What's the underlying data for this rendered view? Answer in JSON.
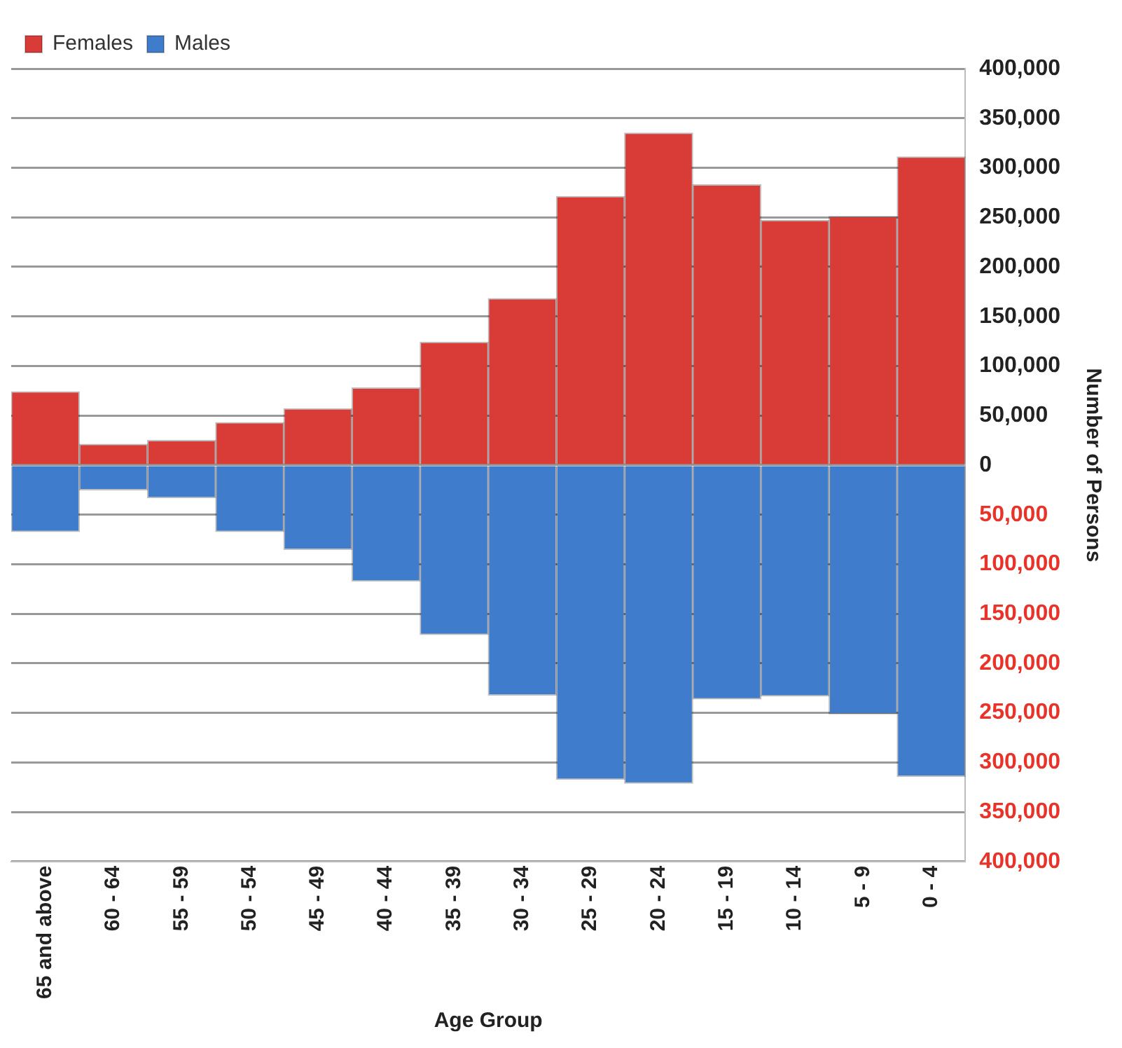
{
  "chart_data": {
    "type": "bar",
    "stacked": true,
    "xlabel": "Age Group",
    "ylabel": "Number of Persons",
    "categories": [
      "65 and above",
      "60 - 64",
      "55 - 59",
      "50 - 54",
      "45 - 49",
      "40 - 44",
      "35 - 39",
      "30 - 34",
      "25 - 29",
      "20 - 24",
      "15 - 19",
      "10 - 14",
      "5 - 9",
      "0 - 4"
    ],
    "series": [
      {
        "name": "Females",
        "color": "#d93b36",
        "values": [
          74000,
          21000,
          25000,
          43000,
          57000,
          78000,
          124000,
          168000,
          271000,
          335000,
          283000,
          247000,
          251000,
          311000
        ]
      },
      {
        "name": "Males",
        "color": "#3f7ccc",
        "values": [
          -67000,
          -25000,
          -33000,
          -67000,
          -85000,
          -117000,
          -171000,
          -232000,
          -317000,
          -321000,
          -236000,
          -233000,
          -251000,
          -314000
        ]
      }
    ],
    "ylim": [
      -400000,
      400000
    ],
    "yticks": [
      {
        "value": -400000,
        "label": "400,000"
      },
      {
        "value": -350000,
        "label": "350,000"
      },
      {
        "value": -300000,
        "label": "300,000"
      },
      {
        "value": -250000,
        "label": "250,000"
      },
      {
        "value": -200000,
        "label": "200,000"
      },
      {
        "value": -150000,
        "label": "150,000"
      },
      {
        "value": -100000,
        "label": "100,000"
      },
      {
        "value": -50000,
        "label": "50,000"
      },
      {
        "value": 0,
        "label": "0"
      },
      {
        "value": 50000,
        "label": "50,000"
      },
      {
        "value": 100000,
        "label": "100,000"
      },
      {
        "value": 150000,
        "label": "150,000"
      },
      {
        "value": 200000,
        "label": "200,000"
      },
      {
        "value": 250000,
        "label": "250,000"
      },
      {
        "value": 300000,
        "label": "300,000"
      },
      {
        "value": 350000,
        "label": "350,000"
      },
      {
        "value": 400000,
        "label": "400,000"
      }
    ],
    "grid": "y",
    "legend": "top left"
  }
}
